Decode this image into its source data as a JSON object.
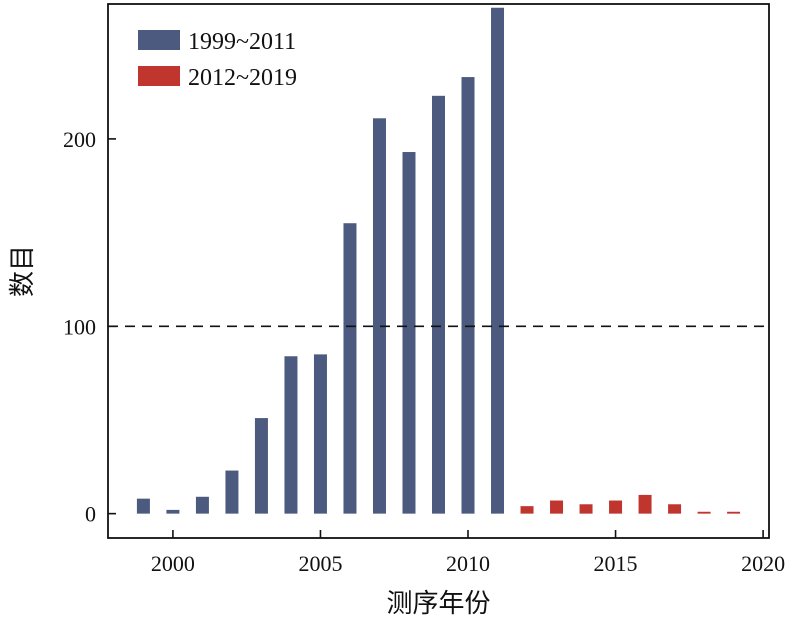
{
  "chart_data": {
    "type": "bar",
    "xlabel": "测序年份",
    "ylabel": "数目",
    "xlim": [
      1997.8,
      2020.2
    ],
    "ylim": [
      -13,
      272
    ],
    "xticks": [
      2000,
      2005,
      2010,
      2015,
      2020
    ],
    "yticks": [
      0,
      100,
      200
    ],
    "reference_line": {
      "y": 100,
      "style": "dashed"
    },
    "legend_position": "top-left",
    "series": [
      {
        "name": "1999~2011",
        "color": "#4c5a80",
        "x": [
          1999,
          2000,
          2001,
          2002,
          2003,
          2004,
          2005,
          2006,
          2007,
          2008,
          2009,
          2010,
          2011
        ],
        "values": [
          8,
          2,
          9,
          23,
          51,
          84,
          85,
          155,
          211,
          193,
          223,
          233,
          270
        ]
      },
      {
        "name": "2012~2019",
        "color": "#c0362f",
        "x": [
          2012,
          2013,
          2014,
          2015,
          2016,
          2017,
          2018,
          2019
        ],
        "values": [
          4,
          7,
          5,
          7,
          10,
          5,
          1,
          1
        ]
      }
    ]
  }
}
